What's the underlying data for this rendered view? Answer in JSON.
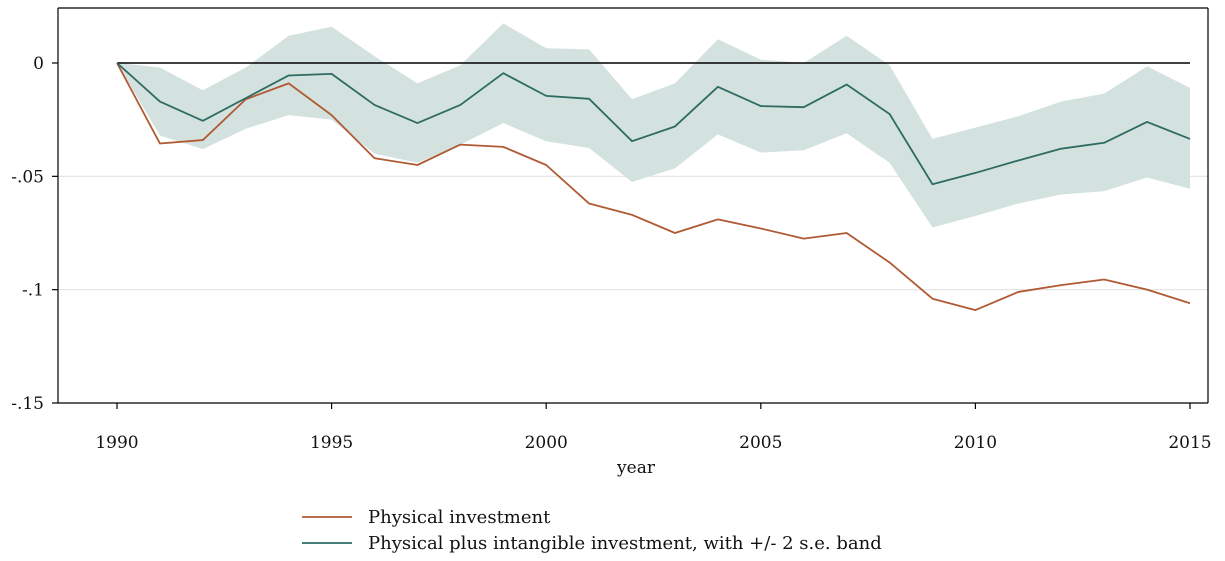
{
  "chart_data": {
    "type": "line",
    "title": "",
    "xlabel": "year",
    "ylabel": "",
    "xlim": [
      1990,
      2015
    ],
    "ylim": [
      -0.15,
      0.025
    ],
    "x_ticks": [
      1990,
      1995,
      2000,
      2005,
      2010,
      2015
    ],
    "y_ticks": [
      0,
      -0.05,
      -0.1,
      -0.15
    ],
    "y_tick_labels": [
      "0",
      "-.05",
      "-.1",
      "-.15"
    ],
    "grid": "horizontal",
    "legend_position": "bottom",
    "reference_line": 0,
    "x": [
      1990,
      1991,
      1992,
      1993,
      1994,
      1995,
      1996,
      1997,
      1998,
      1999,
      2000,
      2001,
      2002,
      2003,
      2004,
      2005,
      2006,
      2007,
      2008,
      2009,
      2010,
      2011,
      2012,
      2013,
      2014,
      2015
    ],
    "series": [
      {
        "name": "Physical investment",
        "color": "#b05a34",
        "values": [
          0,
          -0.0355,
          -0.034,
          -0.016,
          -0.009,
          -0.023,
          -0.042,
          -0.045,
          -0.036,
          -0.037,
          -0.045,
          -0.062,
          -0.067,
          -0.075,
          -0.069,
          -0.073,
          -0.0775,
          -0.075,
          -0.088,
          -0.104,
          -0.109,
          -0.101,
          -0.098,
          -0.0955,
          -0.1,
          -0.106
        ]
      },
      {
        "name": "Physical plus intangible investment, with +/- 2 s.e. band",
        "color": "#2d6b63",
        "band_color": "#d3e2de",
        "values": [
          0,
          -0.017,
          -0.0255,
          -0.0155,
          -0.0055,
          -0.0048,
          -0.0185,
          -0.0265,
          -0.0185,
          -0.0045,
          -0.0145,
          -0.0158,
          -0.0345,
          -0.028,
          -0.0105,
          -0.019,
          -0.0195,
          -0.0095,
          -0.0225,
          -0.0535,
          -0.0485,
          -0.043,
          -0.0378,
          -0.0352,
          -0.026,
          -0.0335
        ],
        "band_upper": [
          0,
          -0.002,
          -0.012,
          -0.002,
          0.012,
          0.016,
          0.003,
          -0.009,
          -0.001,
          0.0175,
          0.0065,
          0.006,
          -0.016,
          -0.009,
          0.0105,
          0.0015,
          0.0,
          0.012,
          -0.001,
          -0.0335,
          -0.0285,
          -0.0235,
          -0.017,
          -0.0135,
          -0.0015,
          -0.011
        ],
        "band_lower": [
          0,
          -0.032,
          -0.038,
          -0.029,
          -0.023,
          -0.025,
          -0.04,
          -0.044,
          -0.036,
          -0.0265,
          -0.0345,
          -0.0375,
          -0.0525,
          -0.0465,
          -0.0315,
          -0.0395,
          -0.0385,
          -0.031,
          -0.044,
          -0.0725,
          -0.0675,
          -0.062,
          -0.058,
          -0.0565,
          -0.0505,
          -0.0555
        ]
      }
    ]
  }
}
